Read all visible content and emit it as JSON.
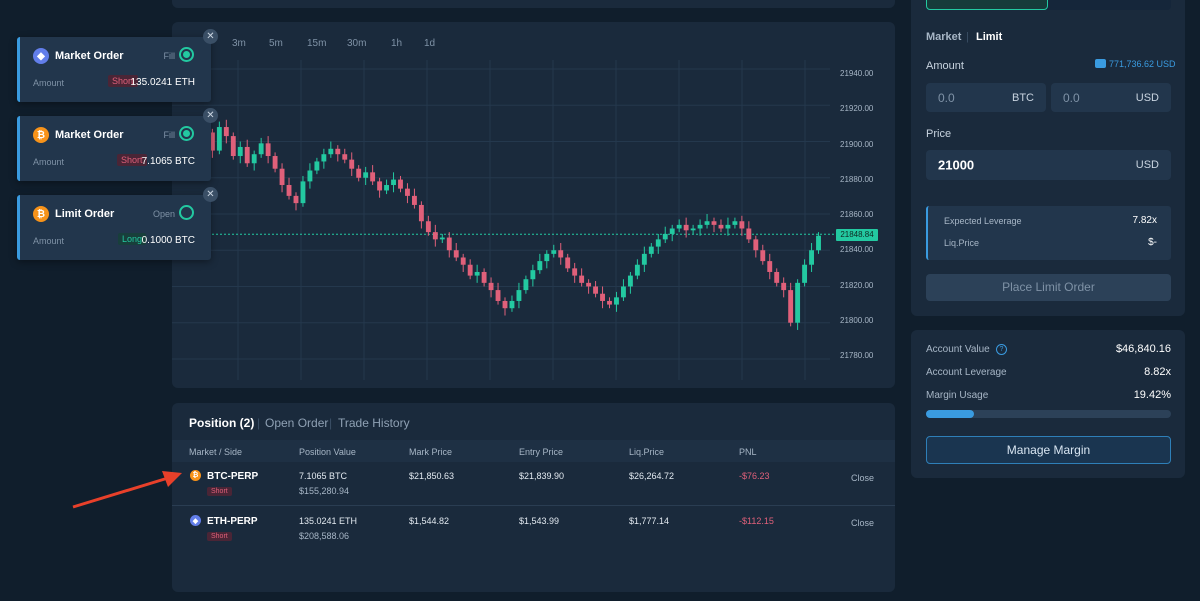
{
  "toasts": [
    {
      "title": "Market Order",
      "status": "Fill",
      "amount_label": "Amount",
      "side": "Short",
      "amount": "135.0241 ETH",
      "coin": "eth",
      "filled": true
    },
    {
      "title": "Market Order",
      "status": "Fill",
      "amount_label": "Amount",
      "side": "Short",
      "amount": "7.1065 BTC",
      "coin": "btc",
      "filled": true
    },
    {
      "title": "Limit Order",
      "status": "Open",
      "amount_label": "Amount",
      "side": "Long",
      "amount": "0.1000 BTC",
      "coin": "btc",
      "filled": false
    }
  ],
  "chart": {
    "timeframes": [
      "3m",
      "5m",
      "15m",
      "30m",
      "1h",
      "1d"
    ],
    "y_ticks": [
      "21940.00",
      "21920.00",
      "21900.00",
      "21880.00",
      "21860.00",
      "21840.00",
      "21820.00",
      "21800.00",
      "21780.00"
    ],
    "current_price": "21848.84"
  },
  "chart_data": {
    "type": "candlestick",
    "ylim": [
      21775,
      21945
    ],
    "close_prices": [
      21898,
      21900,
      21905,
      21895,
      21908,
      21903,
      21892,
      21897,
      21888,
      21893,
      21899,
      21892,
      21885,
      21876,
      21870,
      21866,
      21878,
      21884,
      21889,
      21893,
      21896,
      21893,
      21890,
      21885,
      21880,
      21883,
      21878,
      21873,
      21876,
      21879,
      21874,
      21870,
      21865,
      21856,
      21850,
      21846,
      21847,
      21840,
      21836,
      21832,
      21826,
      21828,
      21822,
      21818,
      21812,
      21808,
      21812,
      21818,
      21824,
      21829,
      21834,
      21838,
      21840,
      21836,
      21830,
      21826,
      21822,
      21820,
      21816,
      21812,
      21810,
      21814,
      21820,
      21826,
      21832,
      21838,
      21842,
      21846,
      21849,
      21852,
      21854,
      21851,
      21852,
      21854,
      21856,
      21854,
      21852,
      21854,
      21856,
      21852,
      21846,
      21840,
      21834,
      21828,
      21822,
      21818,
      21800,
      21822,
      21832,
      21840,
      21848
    ]
  },
  "positions": {
    "tabs": [
      "Position (2)",
      "Open Order",
      "Trade History"
    ],
    "headers": [
      "Market / Side",
      "Position Value",
      "Mark Price",
      "Entry Price",
      "Liq.Price",
      "PNL"
    ],
    "rows": [
      {
        "market": "BTC-PERP",
        "side": "Short",
        "size": "7.1065 BTC",
        "value": "$155,280.94",
        "mark": "$21,850.63",
        "entry": "$21,839.90",
        "liq": "$26,264.72",
        "pnl": "-$76.23",
        "action": "Close",
        "coin": "btc"
      },
      {
        "market": "ETH-PERP",
        "side": "Short",
        "size": "135.0241 ETH",
        "value": "$208,588.06",
        "mark": "$1,544.82",
        "entry": "$1,543.99",
        "liq": "$1,777.14",
        "pnl": "-$112.15",
        "action": "Close",
        "coin": "eth"
      }
    ]
  },
  "order_form": {
    "tab_market": "Market",
    "tab_limit": "Limit",
    "amount_label": "Amount",
    "balance": "771,736.62 USD",
    "amount_btc_value": "0.0",
    "amount_btc_unit": "BTC",
    "amount_usd_value": "0.0",
    "amount_usd_unit": "USD",
    "price_label": "Price",
    "price_value": "21000",
    "price_unit": "USD",
    "expected_leverage_label": "Expected Leverage",
    "expected_leverage_value": "7.82x",
    "liq_price_label": "Liq.Price",
    "liq_price_value": "$-",
    "place_button": "Place Limit Order"
  },
  "account": {
    "value_label": "Account Value",
    "value": "$46,840.16",
    "leverage_label": "Account Leverage",
    "leverage": "8.82x",
    "margin_label": "Margin Usage",
    "margin": "19.42%",
    "margin_fraction": 0.1942,
    "manage_button": "Manage Margin"
  },
  "colors": {
    "up": "#23c9a1",
    "down": "#e0607a",
    "accent": "#3a9be0",
    "btc": "#f7931a",
    "eth": "#627eea"
  }
}
